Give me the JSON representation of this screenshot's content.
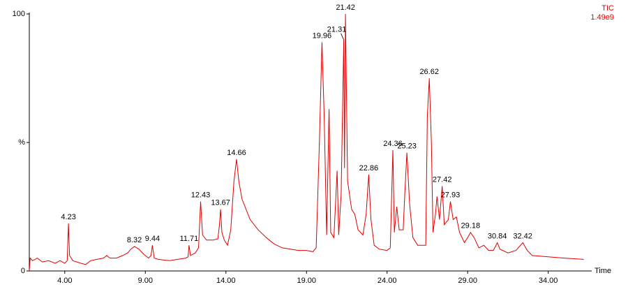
{
  "chart_data": {
    "type": "line",
    "trace_name": "TIC",
    "intensity": "1.49e9",
    "x_label": "Time",
    "color": "#e00000",
    "xlim": [
      1.8,
      36.7
    ],
    "ylim": [
      0,
      100
    ],
    "xticks": [
      {
        "value": 4,
        "label": "4.00"
      },
      {
        "value": 9,
        "label": "9.00"
      },
      {
        "value": 14,
        "label": "14.00"
      },
      {
        "value": 19,
        "label": "19.00"
      },
      {
        "value": 24,
        "label": "24.00"
      },
      {
        "value": 29,
        "label": "29.00"
      },
      {
        "value": 34,
        "label": "34.00"
      }
    ],
    "yticks": [
      0,
      {
        "value": 50,
        "label": "%"
      },
      100
    ],
    "x": [
      1.8,
      1.85,
      2.0,
      2.3,
      2.6,
      3.0,
      3.4,
      3.7,
      4.0,
      4.15,
      4.23,
      4.3,
      4.5,
      5.0,
      5.3,
      5.6,
      6.0,
      6.4,
      6.6,
      6.8,
      7.2,
      7.6,
      7.9,
      8.1,
      8.32,
      8.6,
      8.9,
      9.2,
      9.35,
      9.44,
      9.55,
      9.8,
      10.5,
      11.0,
      11.5,
      11.65,
      11.71,
      11.8,
      12.1,
      12.3,
      12.43,
      12.55,
      12.8,
      13.2,
      13.5,
      13.6,
      13.67,
      13.75,
      13.9,
      14.1,
      14.3,
      14.5,
      14.66,
      14.8,
      15.0,
      15.5,
      16.0,
      16.5,
      17.0,
      17.5,
      18.0,
      18.5,
      19.0,
      19.4,
      19.6,
      19.8,
      19.96,
      20.1,
      20.25,
      20.4,
      20.5,
      20.7,
      20.9,
      21.0,
      21.15,
      21.31,
      21.36,
      21.42,
      21.55,
      21.8,
      22.0,
      22.2,
      22.5,
      22.7,
      22.86,
      23.0,
      23.2,
      23.5,
      24.0,
      24.2,
      24.36,
      24.45,
      24.6,
      24.75,
      25.0,
      25.1,
      25.23,
      25.4,
      25.6,
      25.9,
      26.2,
      26.4,
      26.5,
      26.62,
      26.75,
      26.85,
      27.0,
      27.1,
      27.25,
      27.42,
      27.55,
      27.8,
      27.93,
      28.1,
      28.3,
      28.5,
      28.8,
      29.0,
      29.18,
      29.4,
      29.7,
      30.0,
      30.3,
      30.6,
      30.84,
      31.0,
      31.5,
      32.0,
      32.42,
      32.7,
      33.0,
      34.0,
      35.0,
      36.2
    ],
    "values": [
      0,
      5,
      4,
      5,
      3.5,
      4,
      3,
      4,
      3,
      4,
      18.5,
      6,
      4,
      3,
      2.5,
      4,
      4.5,
      5,
      6,
      5,
      5,
      6,
      7,
      8.5,
      9.5,
      8.5,
      6.5,
      5,
      6,
      10,
      5,
      4.5,
      4,
      4.5,
      5,
      5.5,
      10,
      6,
      7,
      9,
      27,
      14,
      12,
      12,
      12.5,
      18,
      24,
      15,
      12,
      10,
      16,
      35,
      43.5,
      35,
      28,
      20,
      16,
      13,
      10.5,
      9,
      8.5,
      8,
      8,
      7.5,
      9,
      50,
      89,
      60,
      14,
      63,
      15,
      13,
      39,
      14,
      30,
      90,
      40,
      100,
      35,
      24,
      22,
      16,
      14,
      22,
      37.5,
      20,
      10,
      8.5,
      8,
      9,
      47,
      15,
      25,
      16,
      16,
      30,
      46,
      26,
      13,
      10,
      10,
      10,
      60,
      75,
      50,
      15,
      22,
      29,
      20,
      33,
      18,
      20,
      27,
      20,
      21,
      15,
      11,
      13,
      15,
      13,
      9,
      10,
      8,
      8,
      11,
      8.5,
      7,
      8,
      11,
      8,
      6,
      5.5,
      5,
      4.5
    ],
    "peaks": [
      {
        "x": 4.23,
        "y": 18.5
      },
      {
        "x": 8.32,
        "y": 9.5
      },
      {
        "x": 9.44,
        "y": 10
      },
      {
        "x": 11.71,
        "y": 10
      },
      {
        "x": 12.43,
        "y": 27
      },
      {
        "x": 13.67,
        "y": 24
      },
      {
        "x": 14.66,
        "y": 43.5
      },
      {
        "x": 19.96,
        "y": 89
      },
      {
        "x": 21.31,
        "y": 90
      },
      {
        "x": 21.42,
        "y": 100
      },
      {
        "x": 22.86,
        "y": 37.5
      },
      {
        "x": 24.36,
        "y": 47
      },
      {
        "x": 25.23,
        "y": 46
      },
      {
        "x": 26.62,
        "y": 75
      },
      {
        "x": 27.42,
        "y": 33
      },
      {
        "x": 27.93,
        "y": 27
      },
      {
        "x": 29.18,
        "y": 15
      },
      {
        "x": 30.84,
        "y": 11
      },
      {
        "x": 32.42,
        "y": 11
      }
    ]
  }
}
